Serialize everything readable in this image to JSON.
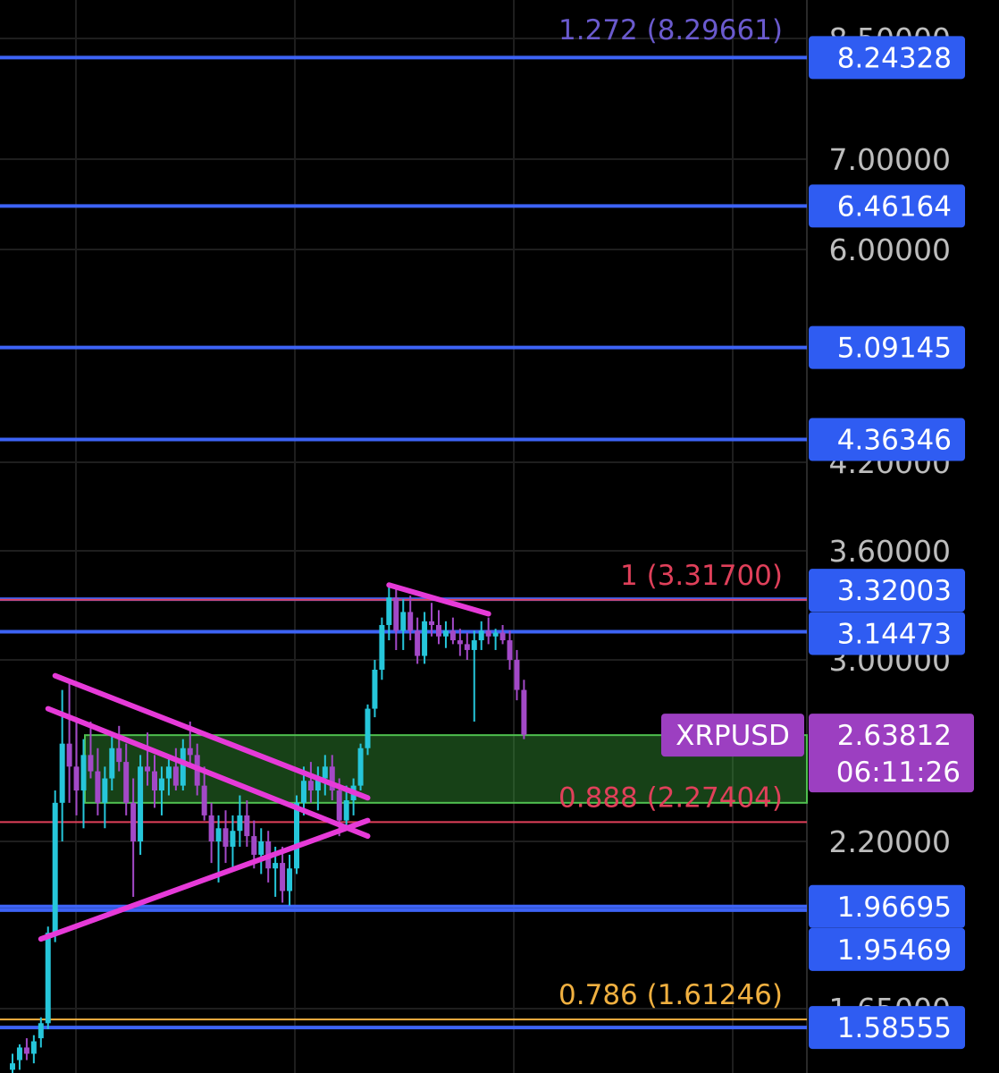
{
  "chart_data": {
    "type": "candlestick",
    "symbol": "XRPUSD",
    "price_axis_ticks": [
      {
        "value": 8.5,
        "label": "8.50000"
      },
      {
        "value": 7.0,
        "label": "7.00000"
      },
      {
        "value": 6.0,
        "label": "6.00000"
      },
      {
        "value": 4.2,
        "label": "4.20000"
      },
      {
        "value": 3.6,
        "label": "3.60000"
      },
      {
        "value": 3.0,
        "label": "3.00000"
      },
      {
        "value": 2.2,
        "label": "2.20000"
      },
      {
        "value": 1.65,
        "label": "1.65000"
      }
    ],
    "horizontal_levels": [
      {
        "value": 8.24328,
        "label": "8.24328"
      },
      {
        "value": 6.46164,
        "label": "6.46164"
      },
      {
        "value": 5.09145,
        "label": "5.09145"
      },
      {
        "value": 4.36346,
        "label": "4.36346"
      },
      {
        "value": 3.32003,
        "label": "3.32003"
      },
      {
        "value": 3.14473,
        "label": "3.14473"
      },
      {
        "value": 1.96695,
        "label": "1.96695"
      },
      {
        "value": 1.95469,
        "label": "1.95469"
      },
      {
        "value": 1.58555,
        "label": "1.58555"
      }
    ],
    "fib_levels": [
      {
        "ratio": "1.272",
        "value": 8.29661,
        "label": "1.272 (8.29661)",
        "color": "#6a5acd",
        "line": false
      },
      {
        "ratio": "1",
        "value": 3.317,
        "label": "1 (3.31700)",
        "color": "#e0405a",
        "line": true
      },
      {
        "ratio": "0.888",
        "value": 2.27404,
        "label": "0.888 (2.27404)",
        "color": "#e0405a",
        "line": true
      },
      {
        "ratio": "0.786",
        "value": 1.61246,
        "label": "0.786 (1.61246)",
        "color": "#f0b040",
        "line": true
      }
    ],
    "support_zone": {
      "top": 2.63812,
      "bottom": 2.35
    },
    "current_price": {
      "value": 2.63812,
      "label": "2.63812",
      "countdown": "06:11:26"
    },
    "candles": [
      [
        1.45,
        1.5,
        1.4,
        1.47
      ],
      [
        1.48,
        1.53,
        1.45,
        1.52
      ],
      [
        1.52,
        1.55,
        1.48,
        1.5
      ],
      [
        1.5,
        1.56,
        1.47,
        1.54
      ],
      [
        1.55,
        1.62,
        1.52,
        1.6
      ],
      [
        1.6,
        1.9,
        1.58,
        1.88
      ],
      [
        1.88,
        2.4,
        1.85,
        2.35
      ],
      [
        2.35,
        2.85,
        2.2,
        2.6
      ],
      [
        2.6,
        2.9,
        2.35,
        2.5
      ],
      [
        2.5,
        2.72,
        2.3,
        2.4
      ],
      [
        2.4,
        2.62,
        2.25,
        2.55
      ],
      [
        2.55,
        2.7,
        2.45,
        2.48
      ],
      [
        2.48,
        2.58,
        2.3,
        2.35
      ],
      [
        2.35,
        2.5,
        2.25,
        2.45
      ],
      [
        2.45,
        2.65,
        2.4,
        2.58
      ],
      [
        2.58,
        2.68,
        2.48,
        2.52
      ],
      [
        2.52,
        2.6,
        2.3,
        2.35
      ],
      [
        2.35,
        2.45,
        2.0,
        2.2
      ],
      [
        2.2,
        2.55,
        2.15,
        2.5
      ],
      [
        2.5,
        2.65,
        2.42,
        2.48
      ],
      [
        2.48,
        2.55,
        2.33,
        2.4
      ],
      [
        2.4,
        2.5,
        2.3,
        2.45
      ],
      [
        2.45,
        2.55,
        2.38,
        2.5
      ],
      [
        2.5,
        2.58,
        2.4,
        2.42
      ],
      [
        2.42,
        2.62,
        2.4,
        2.58
      ],
      [
        2.58,
        2.7,
        2.5,
        2.55
      ],
      [
        2.55,
        2.6,
        2.38,
        2.42
      ],
      [
        2.42,
        2.5,
        2.28,
        2.3
      ],
      [
        2.3,
        2.35,
        2.12,
        2.2
      ],
      [
        2.2,
        2.3,
        2.05,
        2.25
      ],
      [
        2.25,
        2.32,
        2.12,
        2.18
      ],
      [
        2.18,
        2.3,
        2.1,
        2.24
      ],
      [
        2.24,
        2.38,
        2.18,
        2.3
      ],
      [
        2.3,
        2.36,
        2.18,
        2.22
      ],
      [
        2.22,
        2.28,
        2.1,
        2.15
      ],
      [
        2.15,
        2.25,
        2.08,
        2.2
      ],
      [
        2.2,
        2.24,
        2.05,
        2.1
      ],
      [
        2.1,
        2.18,
        2.0,
        2.12
      ],
      [
        2.12,
        2.18,
        1.98,
        2.02
      ],
      [
        2.02,
        2.15,
        1.97,
        2.1
      ],
      [
        2.1,
        2.38,
        2.08,
        2.35
      ],
      [
        2.35,
        2.5,
        2.3,
        2.44
      ],
      [
        2.44,
        2.52,
        2.35,
        2.4
      ],
      [
        2.4,
        2.5,
        2.32,
        2.45
      ],
      [
        2.45,
        2.55,
        2.38,
        2.5
      ],
      [
        2.5,
        2.55,
        2.36,
        2.4
      ],
      [
        2.4,
        2.45,
        2.22,
        2.28
      ],
      [
        2.28,
        2.42,
        2.25,
        2.36
      ],
      [
        2.36,
        2.45,
        2.3,
        2.42
      ],
      [
        2.42,
        2.6,
        2.4,
        2.58
      ],
      [
        2.58,
        2.78,
        2.55,
        2.76
      ],
      [
        2.76,
        3.0,
        2.72,
        2.95
      ],
      [
        2.95,
        3.22,
        2.9,
        3.18
      ],
      [
        3.18,
        3.4,
        3.1,
        3.33
      ],
      [
        3.33,
        3.38,
        3.05,
        3.15
      ],
      [
        3.15,
        3.32,
        3.05,
        3.25
      ],
      [
        3.25,
        3.34,
        3.1,
        3.15
      ],
      [
        3.15,
        3.22,
        2.98,
        3.02
      ],
      [
        3.02,
        3.25,
        2.98,
        3.2
      ],
      [
        3.2,
        3.3,
        3.12,
        3.18
      ],
      [
        3.18,
        3.26,
        3.08,
        3.12
      ],
      [
        3.12,
        3.2,
        3.06,
        3.15
      ],
      [
        3.15,
        3.22,
        3.08,
        3.1
      ],
      [
        3.1,
        3.16,
        3.02,
        3.08
      ],
      [
        3.08,
        3.14,
        3.0,
        3.05
      ],
      [
        3.05,
        3.15,
        2.7,
        3.1
      ],
      [
        3.1,
        3.2,
        3.05,
        3.15
      ],
      [
        3.15,
        3.22,
        3.08,
        3.12
      ],
      [
        3.12,
        3.16,
        3.05,
        3.14
      ],
      [
        3.14,
        3.18,
        3.08,
        3.1
      ],
      [
        3.1,
        3.15,
        2.95,
        3.0
      ],
      [
        3.0,
        3.05,
        2.8,
        2.85
      ],
      [
        2.85,
        2.9,
        2.62,
        2.64
      ]
    ],
    "trendlines": [
      {
        "from": [
          6,
          2.92
        ],
        "to": [
          50,
          2.37
        ]
      },
      {
        "from": [
          5,
          2.76
        ],
        "to": [
          50,
          2.22
        ]
      },
      {
        "from": [
          4,
          1.86
        ],
        "to": [
          50,
          2.28
        ]
      },
      {
        "from": [
          53,
          3.4
        ],
        "to": [
          67,
          3.24
        ]
      }
    ]
  }
}
